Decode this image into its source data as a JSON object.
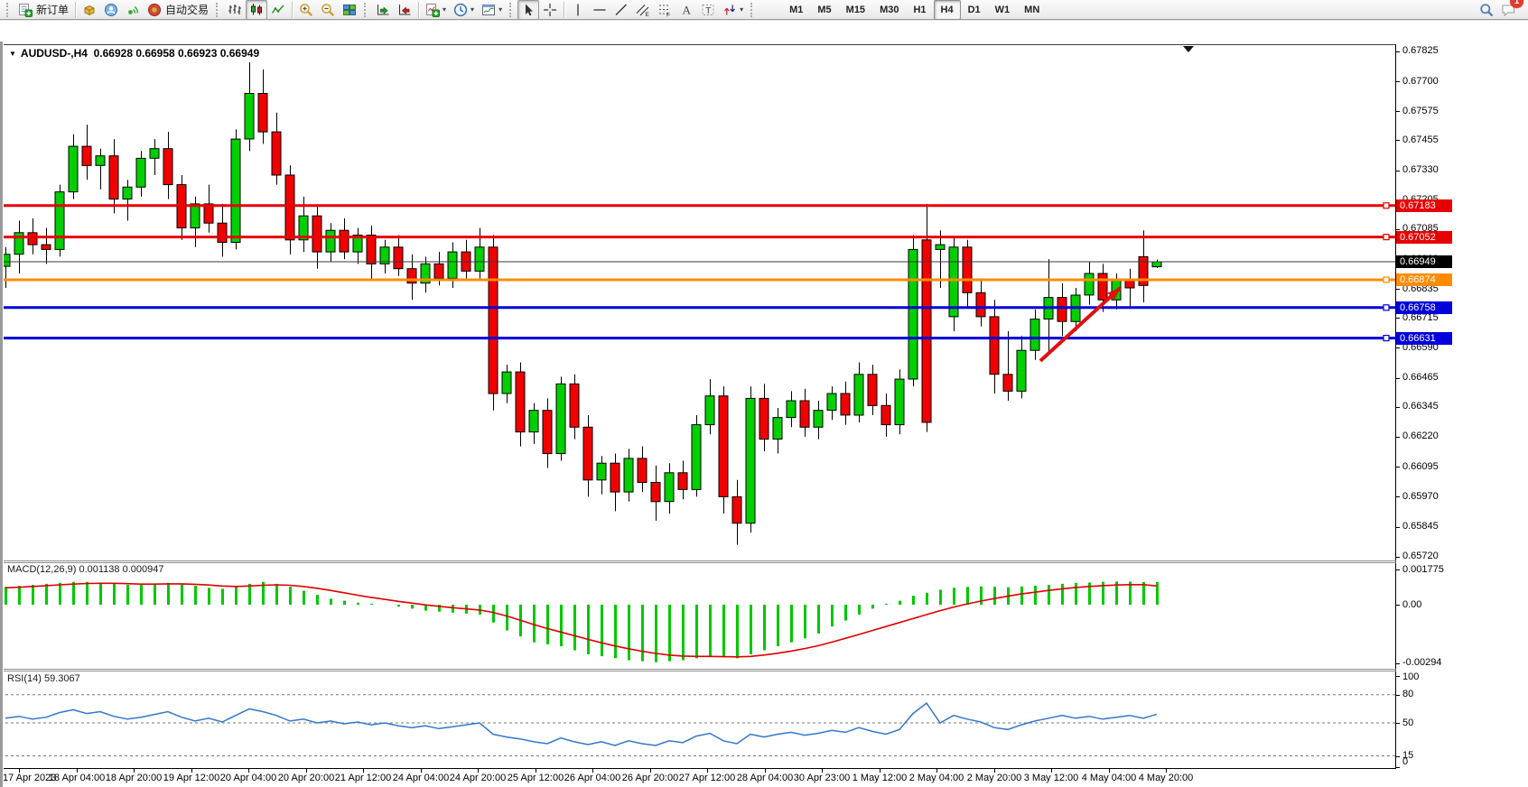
{
  "toolbar": {
    "groups": [
      {
        "items": [
          {
            "icon": "new-order",
            "label": "新订单"
          }
        ]
      },
      {
        "items": [
          {
            "icon": "market-gold"
          },
          {
            "icon": "profile"
          },
          {
            "icon": "signal"
          },
          {
            "icon": "autotrade",
            "label": "自动交易"
          }
        ]
      },
      {
        "items": [
          {
            "icon": "bar-chart"
          },
          {
            "icon": "candle-chart",
            "active": true
          },
          {
            "icon": "line-chart"
          }
        ]
      },
      {
        "items": [
          {
            "icon": "zoom-in"
          },
          {
            "icon": "zoom-out"
          },
          {
            "icon": "tile-windows"
          }
        ]
      },
      {
        "items": [
          {
            "icon": "auto-scroll"
          },
          {
            "icon": "chart-shift"
          }
        ]
      },
      {
        "items": [
          {
            "icon": "indicators",
            "dropdown": true
          },
          {
            "icon": "periods",
            "dropdown": true
          },
          {
            "icon": "templates",
            "dropdown": true
          }
        ]
      },
      {
        "items": [
          {
            "icon": "cursor",
            "active": true
          },
          {
            "icon": "crosshair"
          }
        ]
      },
      {
        "items": [
          {
            "icon": "vertical-line"
          },
          {
            "icon": "horizontal-line"
          },
          {
            "icon": "trend-line"
          },
          {
            "icon": "channel"
          },
          {
            "icon": "fibonacci"
          },
          {
            "icon": "text"
          },
          {
            "icon": "text-label"
          },
          {
            "icon": "arrows",
            "dropdown": true
          }
        ]
      }
    ],
    "timeframes": [
      "M1",
      "M5",
      "M15",
      "M30",
      "H1",
      "H4",
      "D1",
      "W1",
      "MN"
    ],
    "active_timeframe": "H4",
    "right_icons": [
      {
        "icon": "search"
      },
      {
        "icon": "chat",
        "badge": "1"
      }
    ],
    "notification_badge": "1"
  },
  "chart": {
    "title": "AUDUSD-,H4",
    "ohlc_text": "0.66928 0.66958 0.66923 0.66949",
    "price_axis_ticks": [
      "0.67825",
      "0.67700",
      "0.67575",
      "0.67455",
      "0.67330",
      "0.67205",
      "0.67085",
      "0.66960",
      "0.66835",
      "0.66715",
      "0.66590",
      "0.66465",
      "0.66345",
      "0.66220",
      "0.66095",
      "0.65970",
      "0.65845",
      "0.65720"
    ],
    "price_lines": [
      {
        "price": 0.67183,
        "label": "0.67183",
        "color": "#E60000",
        "width": 3
      },
      {
        "price": 0.67052,
        "label": "0.67052",
        "color": "#E60000",
        "width": 3
      },
      {
        "price": 0.66949,
        "label": "0.66949",
        "color": "#000000",
        "width": 1,
        "current": true
      },
      {
        "price": 0.66874,
        "label": "0.66874",
        "color": "#FF8C00",
        "width": 3
      },
      {
        "price": 0.66758,
        "label": "0.66758",
        "color": "#0000DC",
        "width": 3
      },
      {
        "price": 0.66631,
        "label": "0.66631",
        "color": "#0000DC",
        "width": 3
      }
    ],
    "colors": {
      "bull": "#00CF00",
      "bear": "#F20000",
      "outline": "#000000",
      "macd_hist": "#00C800",
      "macd_signal": "#E00000",
      "rsi_line": "#3377CC",
      "arrow": "#E01010"
    }
  },
  "macd_panel": {
    "label": "MACD(12,26,9) 0.001138 0.000947",
    "axis": [
      "0.001775",
      "0.00",
      "-0.00294"
    ]
  },
  "rsi_panel": {
    "label": "RSI(14) 59.3067",
    "axis": [
      "100",
      "80",
      "50",
      "15",
      "0"
    ],
    "levels": [
      80,
      50,
      15
    ]
  },
  "chart_data": {
    "type": "candlestick",
    "symbol": "AUDUSD-",
    "timeframe": "H4",
    "title": "AUDUSD-,H4 0.66928 0.66958 0.66923 0.66949",
    "ohlc_current": {
      "open": 0.66928,
      "high": 0.66958,
      "low": 0.66923,
      "close": 0.66949
    },
    "ylim": [
      0.65704,
      0.67854
    ],
    "x_labels": [
      "17 Apr 2023",
      "18 Apr 04:00",
      "18 Apr 20:00",
      "19 Apr 12:00",
      "20 Apr 04:00",
      "20 Apr 20:00",
      "21 Apr 12:00",
      "24 Apr 04:00",
      "24 Apr 20:00",
      "25 Apr 12:00",
      "26 Apr 04:00",
      "26 Apr 20:00",
      "27 Apr 12:00",
      "28 Apr 04:00",
      "30 Apr 23:00",
      "1 May 12:00",
      "2 May 04:00",
      "2 May 20:00",
      "3 May 12:00",
      "4 May 04:00",
      "4 May 20:00"
    ],
    "candles": [
      [
        0.6693,
        0.6701,
        0.6684,
        0.6698
      ],
      [
        0.6698,
        0.6712,
        0.669,
        0.6707
      ],
      [
        0.6707,
        0.6713,
        0.6698,
        0.6702
      ],
      [
        0.6702,
        0.6709,
        0.6694,
        0.67
      ],
      [
        0.67,
        0.6727,
        0.6697,
        0.6724
      ],
      [
        0.6724,
        0.6748,
        0.6721,
        0.6743
      ],
      [
        0.6743,
        0.6752,
        0.6729,
        0.6735
      ],
      [
        0.6735,
        0.6742,
        0.6725,
        0.6739
      ],
      [
        0.6739,
        0.6746,
        0.6715,
        0.6721
      ],
      [
        0.6721,
        0.6729,
        0.6712,
        0.6726
      ],
      [
        0.6726,
        0.6741,
        0.6722,
        0.6738
      ],
      [
        0.6738,
        0.6746,
        0.6731,
        0.6742
      ],
      [
        0.6742,
        0.6749,
        0.6721,
        0.6727
      ],
      [
        0.6727,
        0.6731,
        0.6704,
        0.6709
      ],
      [
        0.6709,
        0.6722,
        0.6701,
        0.6719
      ],
      [
        0.6719,
        0.6727,
        0.6707,
        0.6711
      ],
      [
        0.6711,
        0.6719,
        0.6697,
        0.6703
      ],
      [
        0.6703,
        0.675,
        0.67,
        0.6746
      ],
      [
        0.6746,
        0.6778,
        0.6741,
        0.6765
      ],
      [
        0.6765,
        0.6775,
        0.6744,
        0.6749
      ],
      [
        0.6749,
        0.6757,
        0.6727,
        0.6731
      ],
      [
        0.6731,
        0.6735,
        0.6698,
        0.6704
      ],
      [
        0.6704,
        0.6722,
        0.6699,
        0.6714
      ],
      [
        0.6714,
        0.6718,
        0.6692,
        0.6699
      ],
      [
        0.6699,
        0.6711,
        0.6695,
        0.6708
      ],
      [
        0.6708,
        0.6713,
        0.6696,
        0.6699
      ],
      [
        0.6699,
        0.6709,
        0.6694,
        0.6706
      ],
      [
        0.6706,
        0.671,
        0.6687,
        0.6694
      ],
      [
        0.6694,
        0.6704,
        0.669,
        0.6701
      ],
      [
        0.6701,
        0.6706,
        0.6689,
        0.6692
      ],
      [
        0.6692,
        0.6698,
        0.6679,
        0.6686
      ],
      [
        0.6686,
        0.6697,
        0.6682,
        0.6694
      ],
      [
        0.6694,
        0.6699,
        0.6685,
        0.6688
      ],
      [
        0.6688,
        0.6703,
        0.6684,
        0.6699
      ],
      [
        0.6699,
        0.6704,
        0.6688,
        0.6691
      ],
      [
        0.6691,
        0.6709,
        0.6688,
        0.6701
      ],
      [
        0.6701,
        0.6706,
        0.6633,
        0.664
      ],
      [
        0.664,
        0.6652,
        0.6636,
        0.6649
      ],
      [
        0.6649,
        0.6653,
        0.6618,
        0.6624
      ],
      [
        0.6624,
        0.6636,
        0.6619,
        0.6633
      ],
      [
        0.6633,
        0.6638,
        0.6609,
        0.6615
      ],
      [
        0.6615,
        0.6647,
        0.6612,
        0.6644
      ],
      [
        0.6644,
        0.6648,
        0.6621,
        0.6626
      ],
      [
        0.6626,
        0.6631,
        0.6597,
        0.6604
      ],
      [
        0.6604,
        0.6614,
        0.6598,
        0.6611
      ],
      [
        0.6611,
        0.6615,
        0.6591,
        0.6599
      ],
      [
        0.6599,
        0.6617,
        0.6595,
        0.6613
      ],
      [
        0.6613,
        0.6618,
        0.6599,
        0.6603
      ],
      [
        0.6603,
        0.661,
        0.6587,
        0.6595
      ],
      [
        0.6595,
        0.6611,
        0.659,
        0.6607
      ],
      [
        0.6607,
        0.6612,
        0.6596,
        0.66
      ],
      [
        0.66,
        0.6631,
        0.6597,
        0.6627
      ],
      [
        0.6627,
        0.6646,
        0.6623,
        0.6639
      ],
      [
        0.6639,
        0.6643,
        0.659,
        0.6597
      ],
      [
        0.6597,
        0.6604,
        0.6577,
        0.6586
      ],
      [
        0.6586,
        0.6643,
        0.6582,
        0.6638
      ],
      [
        0.6638,
        0.6644,
        0.6616,
        0.6621
      ],
      [
        0.6621,
        0.6634,
        0.6615,
        0.663
      ],
      [
        0.663,
        0.6641,
        0.6626,
        0.6637
      ],
      [
        0.6637,
        0.6642,
        0.6622,
        0.6626
      ],
      [
        0.6626,
        0.6637,
        0.6621,
        0.6633
      ],
      [
        0.6633,
        0.6643,
        0.6629,
        0.664
      ],
      [
        0.664,
        0.6645,
        0.6627,
        0.6631
      ],
      [
        0.6631,
        0.6653,
        0.6628,
        0.6648
      ],
      [
        0.6648,
        0.6652,
        0.6631,
        0.6635
      ],
      [
        0.6635,
        0.664,
        0.6622,
        0.6627
      ],
      [
        0.6627,
        0.665,
        0.6623,
        0.6646
      ],
      [
        0.6646,
        0.6706,
        0.6643,
        0.67
      ],
      [
        0.6704,
        0.6719,
        0.6624,
        0.6628
      ],
      [
        0.67,
        0.6708,
        0.6684,
        0.6702
      ],
      [
        0.6672,
        0.6705,
        0.6666,
        0.6701
      ],
      [
        0.6701,
        0.6704,
        0.6676,
        0.6682
      ],
      [
        0.6682,
        0.6688,
        0.6668,
        0.6672
      ],
      [
        0.6672,
        0.6679,
        0.664,
        0.6648
      ],
      [
        0.6648,
        0.6666,
        0.6637,
        0.6641
      ],
      [
        0.6641,
        0.6664,
        0.6638,
        0.6658
      ],
      [
        0.6658,
        0.6675,
        0.6654,
        0.6671
      ],
      [
        0.6671,
        0.6696,
        0.6657,
        0.668
      ],
      [
        0.668,
        0.6686,
        0.6664,
        0.667
      ],
      [
        0.667,
        0.6684,
        0.6666,
        0.6681
      ],
      [
        0.6681,
        0.6695,
        0.6677,
        0.669
      ],
      [
        0.669,
        0.6694,
        0.6674,
        0.6679
      ],
      [
        0.6679,
        0.669,
        0.6675,
        0.6687
      ],
      [
        0.6687,
        0.6692,
        0.6676,
        0.6684
      ],
      [
        0.6697,
        0.6708,
        0.6678,
        0.6685
      ],
      [
        0.66928,
        0.66958,
        0.66923,
        0.66949
      ]
    ],
    "macd": {
      "params": [
        12,
        26,
        9
      ],
      "current_macd": 0.001138,
      "current_signal": 0.000947,
      "ylim": [
        -0.00294,
        0.001775
      ],
      "histogram": [
        0.0009,
        0.00095,
        0.001,
        0.00105,
        0.0011,
        0.00115,
        0.00115,
        0.0011,
        0.00105,
        0.001,
        0.001,
        0.00105,
        0.0011,
        0.00105,
        0.00095,
        0.00085,
        0.0008,
        0.0009,
        0.00105,
        0.00115,
        0.00105,
        0.0009,
        0.0007,
        0.0005,
        0.0003,
        0.0002,
        0.0001,
        5e-05,
        0.0,
        -0.0001,
        -0.0002,
        -0.0003,
        -0.00035,
        -0.0004,
        -0.00045,
        -0.0005,
        -0.0009,
        -0.0013,
        -0.0016,
        -0.0019,
        -0.002,
        -0.0021,
        -0.0023,
        -0.0025,
        -0.0026,
        -0.0027,
        -0.0028,
        -0.00285,
        -0.0029,
        -0.00285,
        -0.0028,
        -0.0027,
        -0.0026,
        -0.00265,
        -0.0027,
        -0.0025,
        -0.0023,
        -0.0021,
        -0.0019,
        -0.0017,
        -0.00145,
        -0.0011,
        -0.0008,
        -0.0005,
        -0.0002,
        5e-05,
        0.0002,
        0.00045,
        0.0006,
        0.00075,
        0.00085,
        0.0009,
        0.00092,
        0.0009,
        0.00088,
        0.00092,
        0.00096,
        0.001,
        0.00105,
        0.0011,
        0.00112,
        0.00115,
        0.00117,
        0.00116,
        0.00114,
        0.001138
      ],
      "signal": [
        0.00085,
        0.00088,
        0.00092,
        0.00096,
        0.001,
        0.00104,
        0.00107,
        0.00108,
        0.00108,
        0.00106,
        0.00104,
        0.00104,
        0.00105,
        0.00105,
        0.00103,
        0.00099,
        0.00094,
        0.00092,
        0.00094,
        0.00098,
        0.001,
        0.00098,
        0.00092,
        0.00083,
        0.00072,
        0.0006,
        0.00048,
        0.00037,
        0.00027,
        0.00017,
        8e-05,
        -1e-05,
        -8e-05,
        -0.00015,
        -0.00021,
        -0.00027,
        -0.00039,
        -0.00057,
        -0.00078,
        -0.001,
        -0.0012,
        -0.00138,
        -0.00156,
        -0.00175,
        -0.00192,
        -0.00208,
        -0.00222,
        -0.00235,
        -0.00246,
        -0.00254,
        -0.00259,
        -0.00261,
        -0.00261,
        -0.00262,
        -0.00263,
        -0.00261,
        -0.00254,
        -0.00245,
        -0.00234,
        -0.00221,
        -0.00207,
        -0.00189,
        -0.0017,
        -0.0015,
        -0.0013,
        -0.0011,
        -0.0009,
        -0.0007,
        -0.0005,
        -0.0003,
        -0.00012,
        4e-05,
        0.00018,
        0.00031,
        0.00043,
        0.00054,
        0.00063,
        0.00072,
        0.0008,
        0.00087,
        0.00092,
        0.00096,
        0.00099,
        0.00101,
        0.00101,
        0.000947
      ]
    },
    "rsi": {
      "period": 14,
      "current": 59.3067,
      "levels": [
        80,
        50,
        15
      ],
      "ylim": [
        0,
        100
      ],
      "values": [
        55,
        57,
        54,
        56,
        61,
        64,
        60,
        62,
        57,
        54,
        56,
        59,
        62,
        56,
        52,
        55,
        51,
        58,
        65,
        62,
        58,
        52,
        54,
        50,
        52,
        49,
        51,
        48,
        50,
        47,
        45,
        47,
        44,
        46,
        48,
        50,
        38,
        35,
        33,
        30,
        28,
        34,
        30,
        27,
        30,
        26,
        31,
        28,
        26,
        31,
        29,
        36,
        39,
        31,
        28,
        38,
        35,
        38,
        40,
        37,
        39,
        42,
        40,
        45,
        41,
        38,
        43,
        60,
        71,
        50,
        58,
        54,
        51,
        45,
        43,
        48,
        52,
        55,
        58,
        55,
        57,
        54,
        56,
        58,
        55,
        59.3067
      ]
    },
    "annotations": [
      {
        "type": "trend-arrow",
        "from_bar": 76.4,
        "from_price": 0.66536,
        "to_bar": 82.3,
        "to_price": 0.6684,
        "color": "#E01010"
      }
    ]
  }
}
